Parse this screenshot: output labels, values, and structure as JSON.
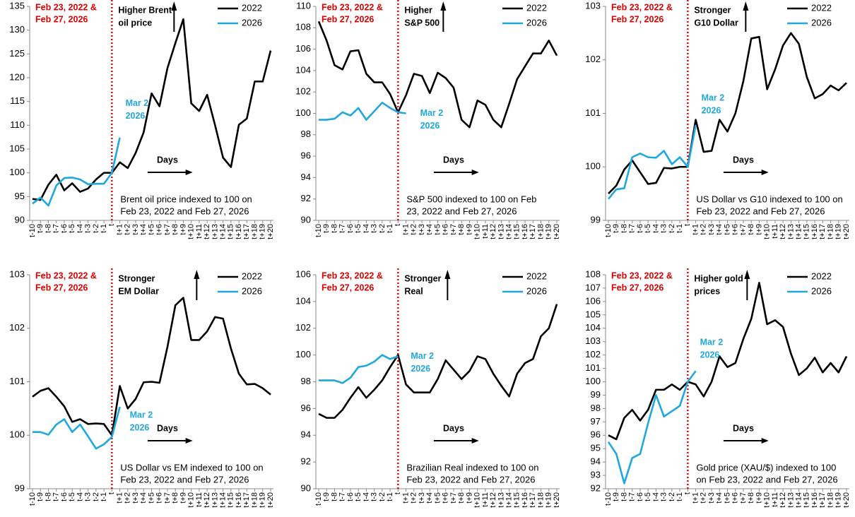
{
  "chart_data": [
    {
      "type": "line",
      "categories": [
        "t-10",
        "t-9",
        "t-8",
        "t-7",
        "t-6",
        "t-5",
        "t-4",
        "t-3",
        "t-2",
        "t-1",
        "t",
        "t+1",
        "t+2",
        "t+3",
        "t+4",
        "t+5",
        "t+6",
        "t+7",
        "t+8",
        "t+9",
        "t+10",
        "t+11",
        "t+12",
        "t+13",
        "t+14",
        "t+15",
        "t+16",
        "t+17",
        "t+18",
        "t+19",
        "t+20"
      ],
      "ylim": [
        90,
        135
      ],
      "yticks": [
        90,
        95,
        100,
        105,
        110,
        115,
        120,
        125,
        130,
        135
      ],
      "series": [
        {
          "name": "2022",
          "color": "#000000",
          "values": [
            94.5,
            94.3,
            97.5,
            99.6,
            96.3,
            97.8,
            96,
            96.7,
            98.6,
            100,
            100,
            102.2,
            101,
            104.2,
            108.5,
            116.7,
            114,
            122,
            127.3,
            132.3,
            114.6,
            113,
            116.4,
            110,
            103.2,
            101.2,
            110.1,
            111.4,
            119.2,
            119.2,
            125.7
          ]
        },
        {
          "name": "2026",
          "color": "#1fa8e0",
          "values": [
            93.5,
            94.8,
            93.1,
            97.3,
            98.9,
            99,
            98.6,
            97.6,
            97.7,
            97.7,
            100,
            107.4,
            null,
            null,
            null,
            null,
            null,
            null,
            null,
            null,
            null,
            null,
            null,
            null,
            null,
            null,
            null,
            null,
            null,
            null,
            null
          ]
        }
      ],
      "event_label": [
        "Feb 23, 2022 &",
        "Feb 27, 2026"
      ],
      "direction_label": [
        "Higher Brent",
        "oil price"
      ],
      "end_label": [
        "Mar 2",
        "2026"
      ],
      "days_label": "Days",
      "note": [
        "Brent oil price indexed to 100 on",
        "Feb 23, 2022 and Feb 27, 2026"
      ]
    },
    {
      "type": "line",
      "categories": [
        "t-10",
        "t-9",
        "t-8",
        "t-7",
        "t-6",
        "t-5",
        "t-4",
        "t-3",
        "t-2",
        "t-1",
        "t",
        "t+1",
        "t+2",
        "t+3",
        "t+4",
        "t+5",
        "t+6",
        "t+7",
        "t+8",
        "t+9",
        "t+10",
        "t+11",
        "t+12",
        "t+13",
        "t+14",
        "t+15",
        "t+16",
        "t+17",
        "t+18",
        "t+19",
        "t+20"
      ],
      "ylim": [
        90,
        110
      ],
      "yticks": [
        90,
        92,
        94,
        96,
        98,
        100,
        102,
        104,
        106,
        108,
        110
      ],
      "series": [
        {
          "name": "2022",
          "color": "#000000",
          "values": [
            108.6,
            106.8,
            104.5,
            104.1,
            105.8,
            105.9,
            103.7,
            102.9,
            102.9,
            101.8,
            100.1,
            101.7,
            103.7,
            103.5,
            101.9,
            103.8,
            103.3,
            102.4,
            99.4,
            98.7,
            101.2,
            100.8,
            99.4,
            98.7,
            100.9,
            103.2,
            104.4,
            105.6,
            105.6,
            106.8,
            105.4
          ]
        },
        {
          "name": "2026",
          "color": "#1fa8e0",
          "values": [
            99.4,
            99.4,
            99.5,
            100.1,
            99.8,
            100.5,
            99.4,
            100.2,
            101,
            100.5,
            100.1,
            100,
            null,
            null,
            null,
            null,
            null,
            null,
            null,
            null,
            null,
            null,
            null,
            null,
            null,
            null,
            null,
            null,
            null,
            null,
            null
          ]
        }
      ],
      "event_label": [
        "Feb 23, 2022 &",
        "Feb 27, 2026"
      ],
      "direction_label": [
        "Higher",
        "S&P 500"
      ],
      "end_label": [
        "Mar 2",
        "2026"
      ],
      "days_label": "Days",
      "note": [
        "S&P 500 indexed to 100 on Feb",
        "23, 2022 and Feb 27, 2026"
      ]
    },
    {
      "type": "line",
      "categories": [
        "t-10",
        "t-9",
        "t-8",
        "t-7",
        "t-6",
        "t-5",
        "t-4",
        "t-3",
        "t-2",
        "t-1",
        "t",
        "t+1",
        "t+2",
        "t+3",
        "t+4",
        "t+5",
        "t+6",
        "t+7",
        "t+8",
        "t+9",
        "t+10",
        "t+11",
        "t+12",
        "t+13",
        "t+14",
        "t+15",
        "t+16",
        "t+17",
        "t+18",
        "t+19",
        "t+20"
      ],
      "ylim": [
        99,
        103
      ],
      "yticks": [
        99,
        100,
        101,
        102,
        103
      ],
      "series": [
        {
          "name": "2022",
          "color": "#000000",
          "values": [
            99.5,
            99.65,
            99.95,
            100.12,
            99.9,
            99.68,
            99.7,
            99.98,
            99.97,
            100,
            100,
            100.88,
            100.28,
            100.3,
            100.88,
            100.66,
            101,
            101.6,
            102.4,
            102.43,
            101.45,
            101.82,
            102.27,
            102.5,
            102.3,
            101.68,
            101.28,
            101.36,
            101.52,
            101.43,
            101.57
          ]
        },
        {
          "name": "2026",
          "color": "#1fa8e0",
          "values": [
            99.4,
            99.58,
            99.6,
            100.18,
            100.25,
            100.18,
            100.17,
            100.3,
            100.05,
            100.18,
            100,
            100.78,
            null,
            null,
            null,
            null,
            null,
            null,
            null,
            null,
            null,
            null,
            null,
            null,
            null,
            null,
            null,
            null,
            null,
            null,
            null
          ]
        }
      ],
      "event_label": [
        "Feb 23, 2022 &",
        "Feb 27, 2026"
      ],
      "direction_label": [
        "Stronger",
        "G10 Dollar"
      ],
      "end_label": [
        "Mar 2",
        "2026"
      ],
      "days_label": "Days",
      "note": [
        "US Dollar vs G10 indexed to 100 on",
        "Feb 23, 2022 and Feb 27, 2026"
      ]
    },
    {
      "type": "line",
      "categories": [
        "t-10",
        "t-9",
        "t-8",
        "t-7",
        "t-6",
        "t-5",
        "t-4",
        "t-3",
        "t-2",
        "t-1",
        "t",
        "t+1",
        "t+2",
        "t+3",
        "t+4",
        "t+5",
        "t+6",
        "t+7",
        "t+8",
        "t+9",
        "t+10",
        "t+11",
        "t+12",
        "t+13",
        "t+14",
        "t+15",
        "t+16",
        "t+17",
        "t+18",
        "t+19",
        "t+20"
      ],
      "ylim": [
        99,
        103
      ],
      "yticks": [
        99,
        100,
        101,
        102,
        103
      ],
      "series": [
        {
          "name": "2022",
          "color": "#000000",
          "values": [
            100.72,
            100.83,
            100.88,
            100.72,
            100.54,
            100.25,
            100.3,
            100.21,
            100.22,
            100.21,
            100,
            100.92,
            100.5,
            100.68,
            100.99,
            101,
            100.98,
            101.65,
            102.43,
            102.57,
            101.78,
            101.78,
            101.94,
            102.21,
            102.18,
            101.62,
            101.15,
            100.95,
            100.96,
            100.88,
            100.76
          ]
        },
        {
          "name": "2026",
          "color": "#1fa8e0",
          "values": [
            100.06,
            100.06,
            100.01,
            100.2,
            100.3,
            100.06,
            100.2,
            99.98,
            99.75,
            99.83,
            99.97,
            100.53,
            null,
            null,
            null,
            null,
            null,
            null,
            null,
            null,
            null,
            null,
            null,
            null,
            null,
            null,
            null,
            null,
            null,
            null,
            null
          ]
        }
      ],
      "event_label": [
        "Feb 23, 2022 &",
        "Feb 27, 2026"
      ],
      "direction_label": [
        "Stronger",
        "EM Dollar"
      ],
      "end_label": [
        "Mar 2",
        "2026"
      ],
      "days_label": "Days",
      "note": [
        "US Dollar vs EM indexed to 100 on",
        "Feb 23, 2022 and Feb 27, 2026"
      ]
    },
    {
      "type": "line",
      "categories": [
        "t-10",
        "t-9",
        "t-8",
        "t-7",
        "t-6",
        "t-5",
        "t-4",
        "t-3",
        "t-2",
        "t-1",
        "t",
        "t+1",
        "t+2",
        "t+3",
        "t+4",
        "t+5",
        "t+6",
        "t+7",
        "t+8",
        "t+9",
        "t+10",
        "t+11",
        "t+12",
        "t+13",
        "t+14",
        "t+15",
        "t+16",
        "t+17",
        "t+18",
        "t+19",
        "t+20"
      ],
      "ylim": [
        90,
        106
      ],
      "yticks": [
        90,
        92,
        94,
        96,
        98,
        100,
        102,
        104,
        106
      ],
      "series": [
        {
          "name": "2022",
          "color": "#000000",
          "values": [
            95.6,
            95.3,
            95.3,
            95.9,
            96.8,
            97.6,
            96.8,
            97.4,
            98.1,
            99.1,
            100,
            97.8,
            97.2,
            97.2,
            97.2,
            98.2,
            99.6,
            98.9,
            98.2,
            98.8,
            99.9,
            99.7,
            98.6,
            97.7,
            96.9,
            98.6,
            99.4,
            99.7,
            101.4,
            102,
            103.8
          ]
        },
        {
          "name": "2026",
          "color": "#1fa8e0",
          "values": [
            98.1,
            98.1,
            98.1,
            97.9,
            98.3,
            99.1,
            99.2,
            99.5,
            100,
            99.7,
            99.9,
            null,
            null,
            null,
            null,
            null,
            null,
            null,
            null,
            null,
            null,
            null,
            null,
            null,
            null,
            null,
            null,
            null,
            null,
            null,
            null
          ]
        }
      ],
      "event_label": [
        "Feb 23, 2022 &",
        "Feb 27, 2026"
      ],
      "direction_label": [
        "Stronger",
        "Real"
      ],
      "end_label": [
        "Mar 2",
        "2026"
      ],
      "days_label": "Days",
      "note": [
        "Brazilian Real indexed to 100 on",
        "Feb 23, 2022 and Feb 27, 2026"
      ]
    },
    {
      "type": "line",
      "categories": [
        "t-10",
        "t-9",
        "t-8",
        "t-7",
        "t-6",
        "t-5",
        "t-4",
        "t-3",
        "t-2",
        "t-1",
        "t",
        "t+1",
        "t+2",
        "t+3",
        "t+4",
        "t+5",
        "t+6",
        "t+7",
        "t+8",
        "t+9",
        "t+10",
        "t+11",
        "t+12",
        "t+13",
        "t+14",
        "t+15",
        "t+16",
        "t+17",
        "t+18",
        "t+19",
        "t+20"
      ],
      "ylim": [
        92,
        108
      ],
      "yticks": [
        92,
        93,
        94,
        95,
        96,
        97,
        98,
        99,
        100,
        101,
        102,
        103,
        104,
        105,
        106,
        107,
        108
      ],
      "series": [
        {
          "name": "2022",
          "color": "#000000",
          "values": [
            96,
            95.7,
            97.3,
            97.9,
            97.1,
            97.9,
            99.4,
            99.4,
            99.8,
            99.4,
            100,
            99.8,
            98.9,
            100,
            101.9,
            101.1,
            101.4,
            103.2,
            104.7,
            107.4,
            104.3,
            104.6,
            104.1,
            102.1,
            100.5,
            101,
            101.8,
            100.7,
            101.4,
            100.7,
            101.9
          ]
        },
        {
          "name": "2026",
          "color": "#1fa8e0",
          "values": [
            95.5,
            94.6,
            92.4,
            94.3,
            94.6,
            96.9,
            99,
            97.4,
            97.8,
            98.2,
            100,
            100.8,
            null,
            null,
            null,
            null,
            null,
            null,
            null,
            null,
            null,
            null,
            null,
            null,
            null,
            null,
            null,
            null,
            null,
            null,
            null
          ]
        }
      ],
      "event_label": [
        "Feb 23, 2022 &",
        "Feb 27, 2026"
      ],
      "direction_label": [
        "Higher gold",
        "prices"
      ],
      "end_label": [
        "Mar 2",
        "2026"
      ],
      "days_label": "Days",
      "note": [
        "Gold price (XAU/$) indexed to 100",
        "on Feb 23, 2022 and Feb 27, 2026"
      ]
    }
  ]
}
